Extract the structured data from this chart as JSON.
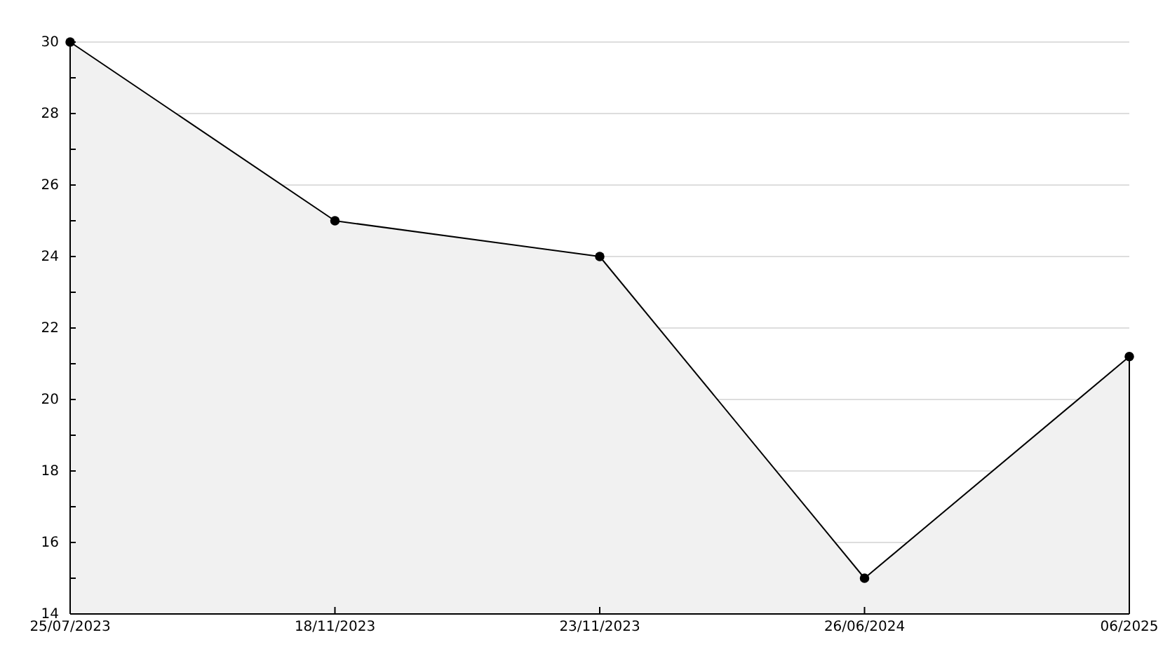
{
  "chart_data": {
    "type": "area",
    "categories": [
      "25/07/2023",
      "18/11/2023",
      "23/11/2023",
      "26/06/2024",
      "06/2025"
    ],
    "series": [
      {
        "color": "#000000",
        "values": [
          30,
          25,
          24,
          15,
          21.2
        ]
      }
    ],
    "ylim": [
      14,
      30
    ],
    "yticks": [
      14,
      {
        "value": 15,
        "label": null
      },
      16,
      {
        "value": 17,
        "label": null
      },
      18,
      {
        "value": 19,
        "label": null
      },
      20,
      {
        "value": 21,
        "label": null
      },
      22,
      {
        "value": 23,
        "label": null
      },
      24,
      {
        "value": 25,
        "label": null
      },
      26,
      {
        "value": 27,
        "label": null
      },
      28,
      {
        "value": 29,
        "label": null
      },
      30
    ],
    "grid": "y",
    "marker": "circle",
    "line_style": "solid"
  }
}
